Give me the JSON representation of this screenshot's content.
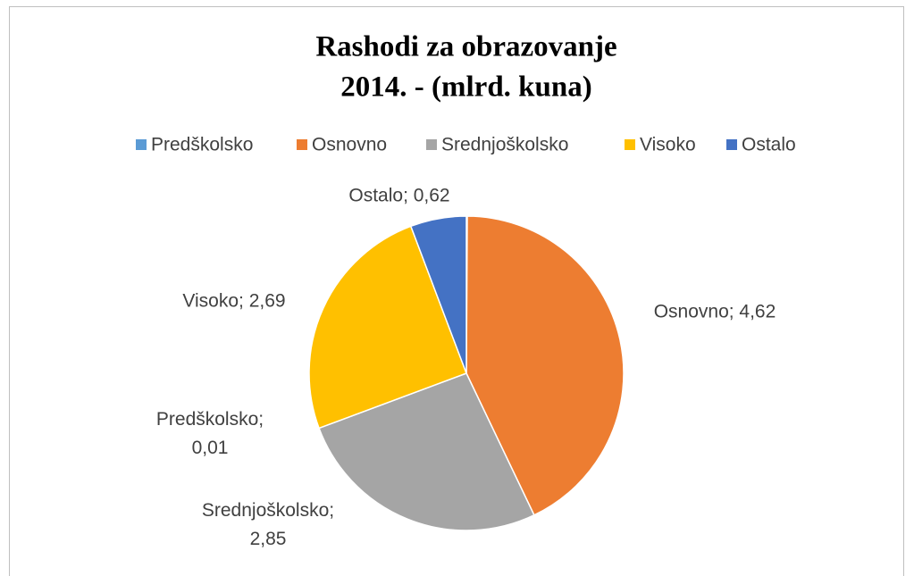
{
  "chart_data": {
    "type": "pie",
    "title": [
      "Rashodi za obrazovanje",
      "2014. - (mlrd. kuna)"
    ],
    "categories": [
      "Predškolsko",
      "Osnovno",
      "Srednjoškolsko",
      "Visoko",
      "Ostalo"
    ],
    "values": [
      0.01,
      4.62,
      2.85,
      2.69,
      0.62
    ],
    "value_labels": [
      "Predškolsko; 0,01",
      "Osnovno; 4,62",
      "Srednjoškolsko; 2,85",
      "Visoko; 2,69",
      "Ostalo; 0,62"
    ],
    "colors": [
      "#5b9bd5",
      "#ed7d31",
      "#a5a5a5",
      "#ffc000",
      "#4472c4"
    ],
    "legend": "top"
  }
}
